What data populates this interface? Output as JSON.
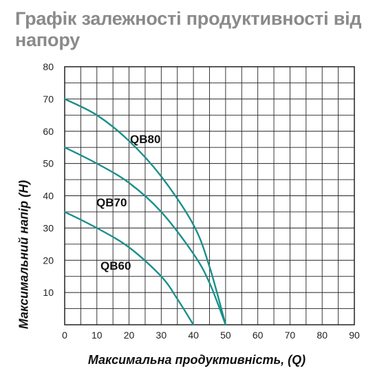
{
  "title": "Графік залежності продуктивності від напору",
  "chart_data": {
    "type": "line",
    "xlabel": "Максимальна продуктивність, (Q)",
    "ylabel": "Максимальний напір (H)",
    "xlim": [
      0,
      90
    ],
    "ylim": [
      0,
      80
    ],
    "xticks": [
      0,
      10,
      20,
      30,
      40,
      50,
      60,
      70,
      80,
      90
    ],
    "yticks": [
      10,
      20,
      30,
      40,
      50,
      60,
      70,
      80
    ],
    "grid": true,
    "line_color": "#1a8f8a",
    "series": [
      {
        "name": "QB80",
        "x": [
          0,
          10,
          20,
          30,
          40,
          45,
          50
        ],
        "y": [
          70,
          65,
          57,
          46,
          31,
          18,
          0
        ]
      },
      {
        "name": "QB70",
        "x": [
          0,
          10,
          20,
          30,
          40,
          45,
          50
        ],
        "y": [
          55,
          50,
          44,
          35,
          22,
          13,
          0
        ]
      },
      {
        "name": "QB60",
        "x": [
          0,
          10,
          20,
          30,
          35,
          40
        ],
        "y": [
          35,
          30,
          24,
          15,
          8,
          0
        ]
      }
    ]
  }
}
